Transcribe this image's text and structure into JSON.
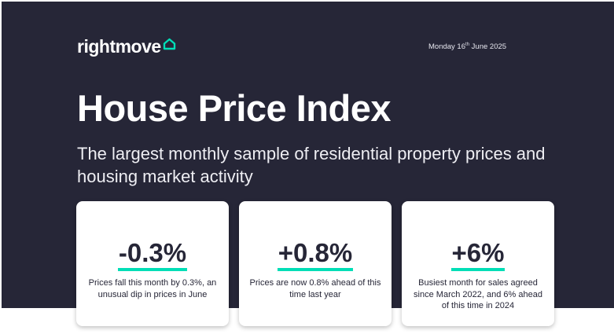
{
  "header": {
    "logo_text": "rightmove",
    "logo_icon": "house-outline-icon",
    "date_prefix": "Monday 16",
    "date_suffix": "th",
    "date_rest": " June 2025"
  },
  "hero": {
    "title": "House Price Index",
    "subtitle": "The largest monthly sample of residential property prices and housing market activity"
  },
  "cards": [
    {
      "stat": "-0.3%",
      "description": "Prices fall this month by 0.3%, an unusual dip in prices in June"
    },
    {
      "stat": "+0.8%",
      "description": "Prices are now 0.8% ahead of this time last year"
    },
    {
      "stat": "+6%",
      "description": "Busiest month for sales agreed since March 2022, and 6% ahead of this time in 2024"
    }
  ],
  "colors": {
    "background": "#262637",
    "accent": "#00deb6",
    "text_light": "#ffffff"
  }
}
